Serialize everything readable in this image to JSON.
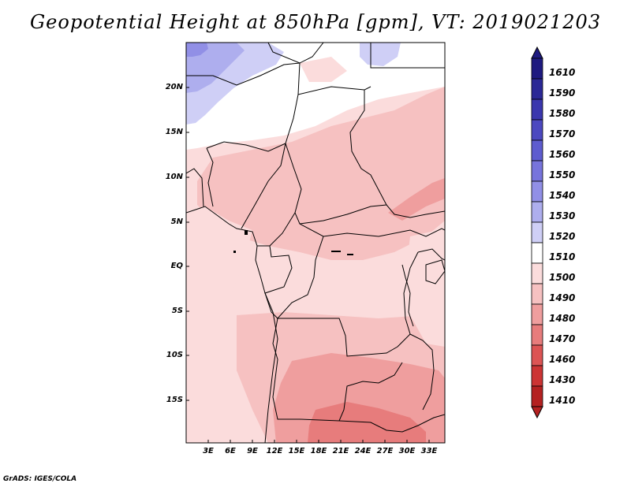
{
  "title": "Geopotential Height at 850hPa [gpm], VT: 2019021203",
  "footer": "GrADS: IGES/COLA",
  "map": {
    "lat_labels": [
      "20N",
      "15N",
      "10N",
      "5N",
      "EQ",
      "5S",
      "10S",
      "15S"
    ],
    "lon_labels": [
      "3E",
      "6E",
      "9E",
      "12E",
      "15E",
      "18E",
      "21E",
      "24E",
      "27E",
      "30E",
      "33E"
    ]
  },
  "colorbar": {
    "levels": [
      "1610",
      "1590",
      "1580",
      "1570",
      "1560",
      "1550",
      "1540",
      "1530",
      "1520",
      "1510",
      "1500",
      "1490",
      "1480",
      "1470",
      "1460",
      "1430",
      "1410"
    ],
    "colors": [
      "#1e1a80",
      "#2b2896",
      "#3b37ae",
      "#4c48c0",
      "#5e5ccf",
      "#7774dc",
      "#918fe6",
      "#aeaeee",
      "#cfcff6",
      "#ffffff",
      "#fbdcdc",
      "#f6c1c1",
      "#ef9e9e",
      "#e77c7c",
      "#dc5454",
      "#cc3434",
      "#b42121"
    ]
  }
}
